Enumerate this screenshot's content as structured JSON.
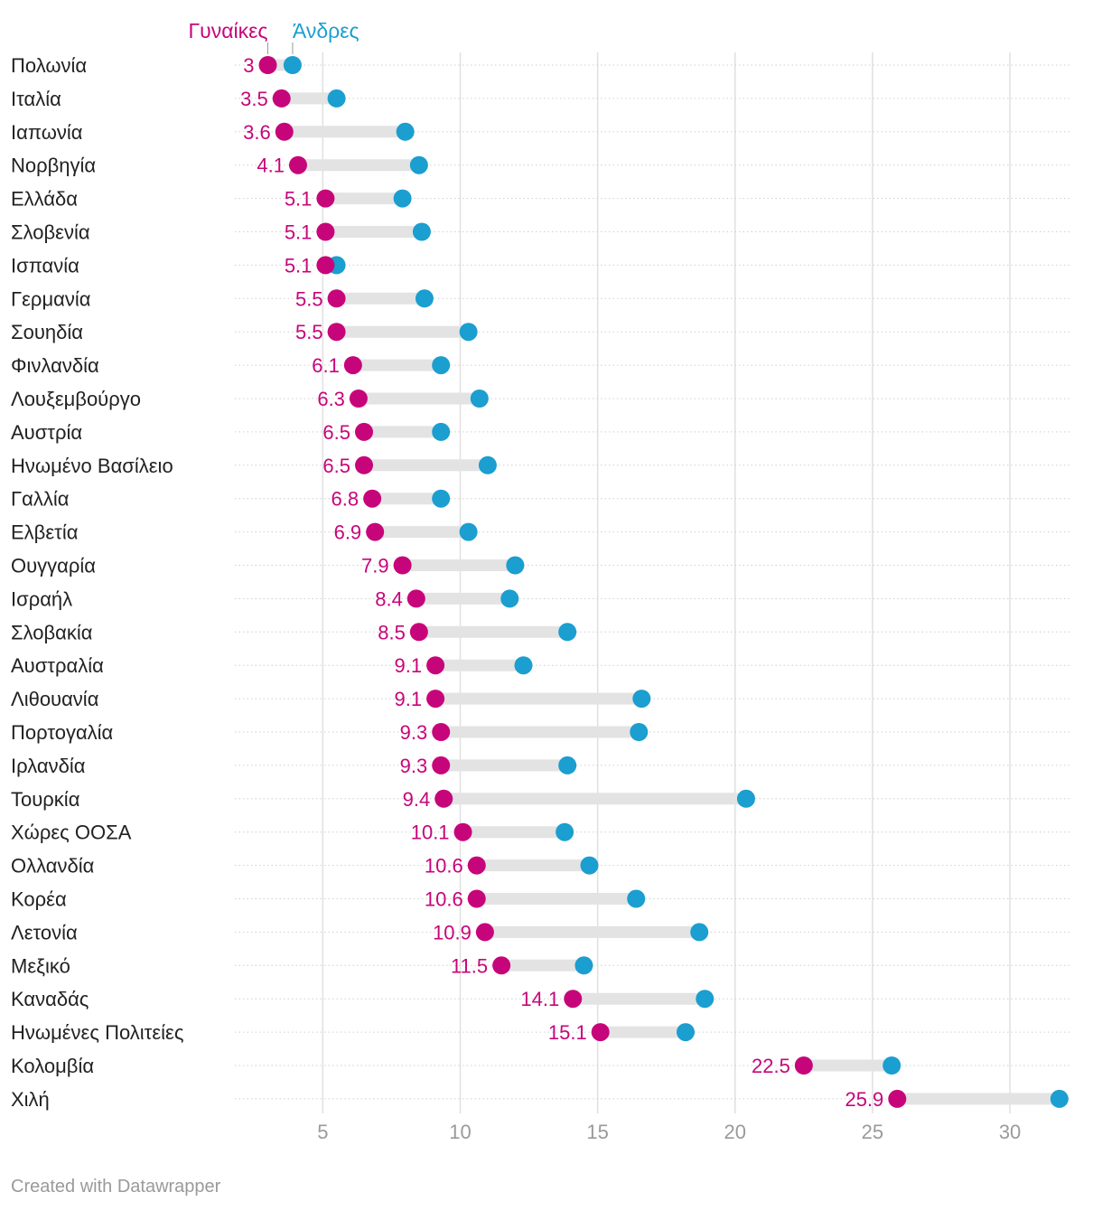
{
  "chart_data": {
    "type": "dot-range",
    "legend": {
      "women": "Γυναίκες",
      "men": "Άνδρες"
    },
    "colors": {
      "women": "#c7057a",
      "men": "#1b9ed0",
      "range_bar": "#e3e3e3",
      "grid": "#e0e0e0",
      "tick_label": "#9a9a9a",
      "category_label": "#222222"
    },
    "x_ticks": [
      5,
      10,
      15,
      20,
      25,
      30
    ],
    "xlim": [
      1.8,
      32.2
    ],
    "series": [
      {
        "name": "Γυναίκες",
        "key": "women"
      },
      {
        "name": "Άνδρες",
        "key": "men"
      }
    ],
    "rows": [
      {
        "country": "Πολωνία",
        "women": 3,
        "women_label": "3",
        "men": 3.9
      },
      {
        "country": "Ιταλία",
        "women": 3.5,
        "women_label": "3.5",
        "men": 5.5
      },
      {
        "country": "Ιαπωνία",
        "women": 3.6,
        "women_label": "3.6",
        "men": 8
      },
      {
        "country": "Νορβηγία",
        "women": 4.1,
        "women_label": "4.1",
        "men": 8.5
      },
      {
        "country": "Ελλάδα",
        "women": 5.1,
        "women_label": "5.1",
        "men": 7.9
      },
      {
        "country": "Σλοβενία",
        "women": 5.1,
        "women_label": "5.1",
        "men": 8.6
      },
      {
        "country": "Ισπανία",
        "women": 5.1,
        "women_label": "5.1",
        "men": 5.5
      },
      {
        "country": "Γερμανία",
        "women": 5.5,
        "women_label": "5.5",
        "men": 8.7
      },
      {
        "country": "Σουηδία",
        "women": 5.5,
        "women_label": "5.5",
        "men": 10.3
      },
      {
        "country": "Φινλανδία",
        "women": 6.1,
        "women_label": "6.1",
        "men": 9.3
      },
      {
        "country": "Λουξεμβούργο",
        "women": 6.3,
        "women_label": "6.3",
        "men": 10.7
      },
      {
        "country": "Αυστρία",
        "women": 6.5,
        "women_label": "6.5",
        "men": 9.3
      },
      {
        "country": "Ηνωμένο Βασίλειο",
        "women": 6.5,
        "women_label": "6.5",
        "men": 11
      },
      {
        "country": "Γαλλία",
        "women": 6.8,
        "women_label": "6.8",
        "men": 9.3
      },
      {
        "country": "Ελβετία",
        "women": 6.9,
        "women_label": "6.9",
        "men": 10.3
      },
      {
        "country": "Ουγγαρία",
        "women": 7.9,
        "women_label": "7.9",
        "men": 12
      },
      {
        "country": "Ισραήλ",
        "women": 8.4,
        "women_label": "8.4",
        "men": 11.8
      },
      {
        "country": "Σλοβακία",
        "women": 8.5,
        "women_label": "8.5",
        "men": 13.9
      },
      {
        "country": "Αυστραλία",
        "women": 9.1,
        "women_label": "9.1",
        "men": 12.3
      },
      {
        "country": "Λιθουανία",
        "women": 9.1,
        "women_label": "9.1",
        "men": 16.6
      },
      {
        "country": "Πορτογαλία",
        "women": 9.3,
        "women_label": "9.3",
        "men": 16.5
      },
      {
        "country": "Ιρλανδία",
        "women": 9.3,
        "women_label": "9.3",
        "men": 13.9
      },
      {
        "country": "Τουρκία",
        "women": 9.4,
        "women_label": "9.4",
        "men": 20.4
      },
      {
        "country": "Χώρες ΟΟΣΑ",
        "women": 10.1,
        "women_label": "10.1",
        "men": 13.8
      },
      {
        "country": "Ολλανδία",
        "women": 10.6,
        "women_label": "10.6",
        "men": 14.7
      },
      {
        "country": "Κορέα",
        "women": 10.6,
        "women_label": "10.6",
        "men": 16.4
      },
      {
        "country": "Λετονία",
        "women": 10.9,
        "women_label": "10.9",
        "men": 18.7
      },
      {
        "country": "Μεξικό",
        "women": 11.5,
        "women_label": "11.5",
        "men": 14.5
      },
      {
        "country": "Καναδάς",
        "women": 14.1,
        "women_label": "14.1",
        "men": 18.9
      },
      {
        "country": "Ηνωμένες Πολιτείες",
        "women": 15.1,
        "women_label": "15.1",
        "men": 18.2
      },
      {
        "country": "Κολομβία",
        "women": 22.5,
        "women_label": "22.5",
        "men": 25.7
      },
      {
        "country": "Χιλή",
        "women": 25.9,
        "women_label": "25.9",
        "men": 31.8
      }
    ]
  },
  "footer": {
    "credit": "Created with Datawrapper"
  }
}
